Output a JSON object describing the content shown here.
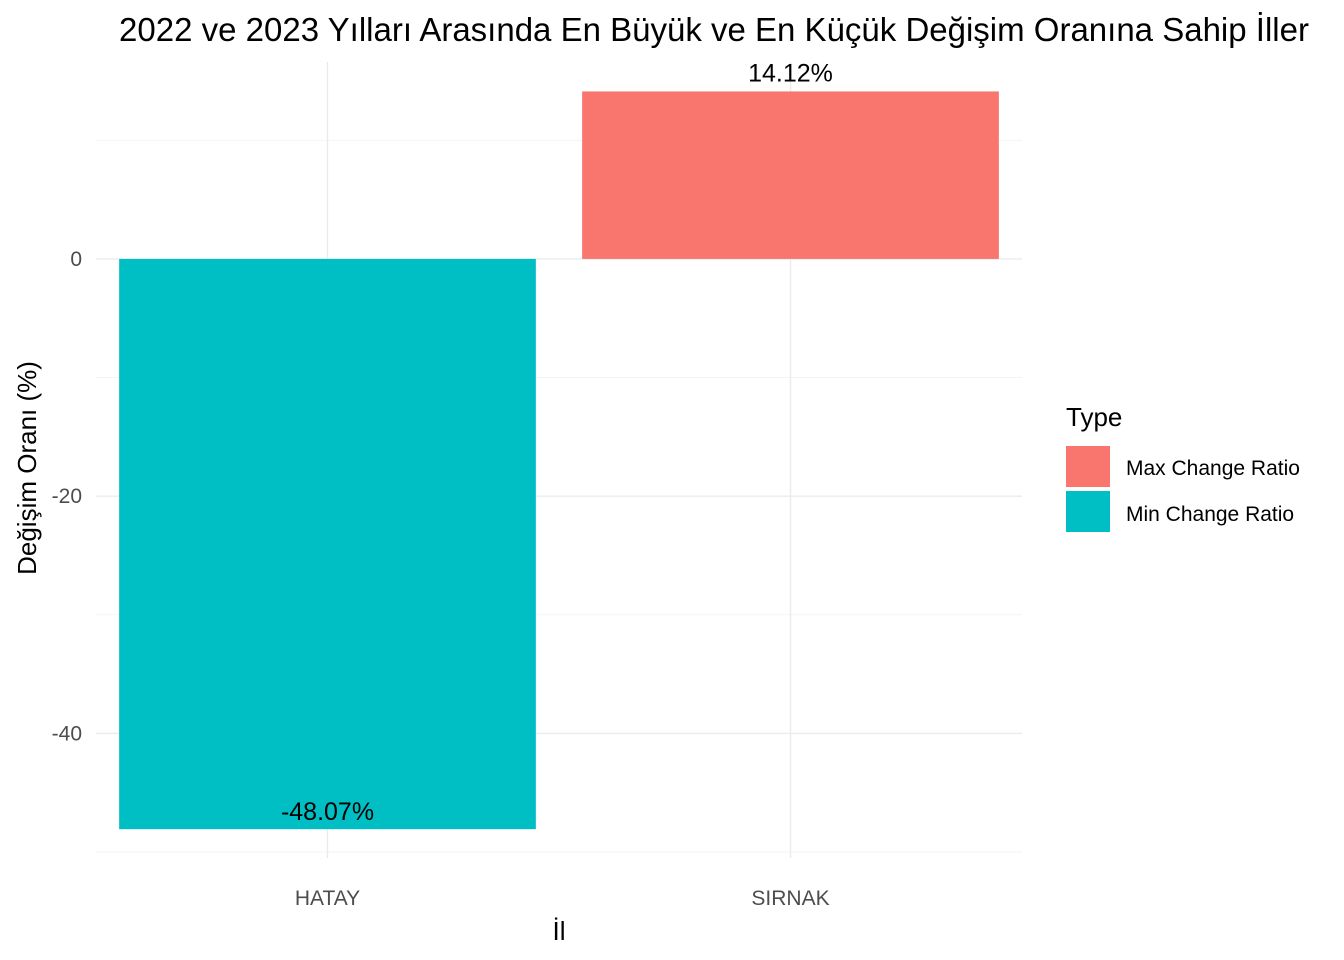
{
  "chart_data": {
    "type": "bar",
    "title": "2022 ve 2023 Yılları Arasında En Büyük ve En Küçük Değişim Oranına Sahip İller",
    "xlabel": "İl",
    "ylabel": "Değişim Oranı (%)",
    "categories": [
      "HATAY",
      "SIRNAK"
    ],
    "values": [
      -48.07,
      14.12
    ],
    "data_labels": [
      "-48.07%",
      "14.12%"
    ],
    "bar_types": [
      "Min Change Ratio",
      "Max Change Ratio"
    ],
    "ylim": [
      -50.5,
      16.6
    ],
    "y_ticks": [
      0,
      -20,
      -40
    ],
    "y_tick_labels": [
      "0",
      "-20",
      "-40"
    ],
    "grid": true,
    "legend": {
      "title": "Type",
      "placement": "right",
      "entries": [
        {
          "label": "Max Change Ratio",
          "color": "#F8766D"
        },
        {
          "label": "Min Change Ratio",
          "color": "#00BFC4"
        }
      ]
    },
    "colors": {
      "Max Change Ratio": "#F8766D",
      "Min Change Ratio": "#00BFC4"
    }
  }
}
